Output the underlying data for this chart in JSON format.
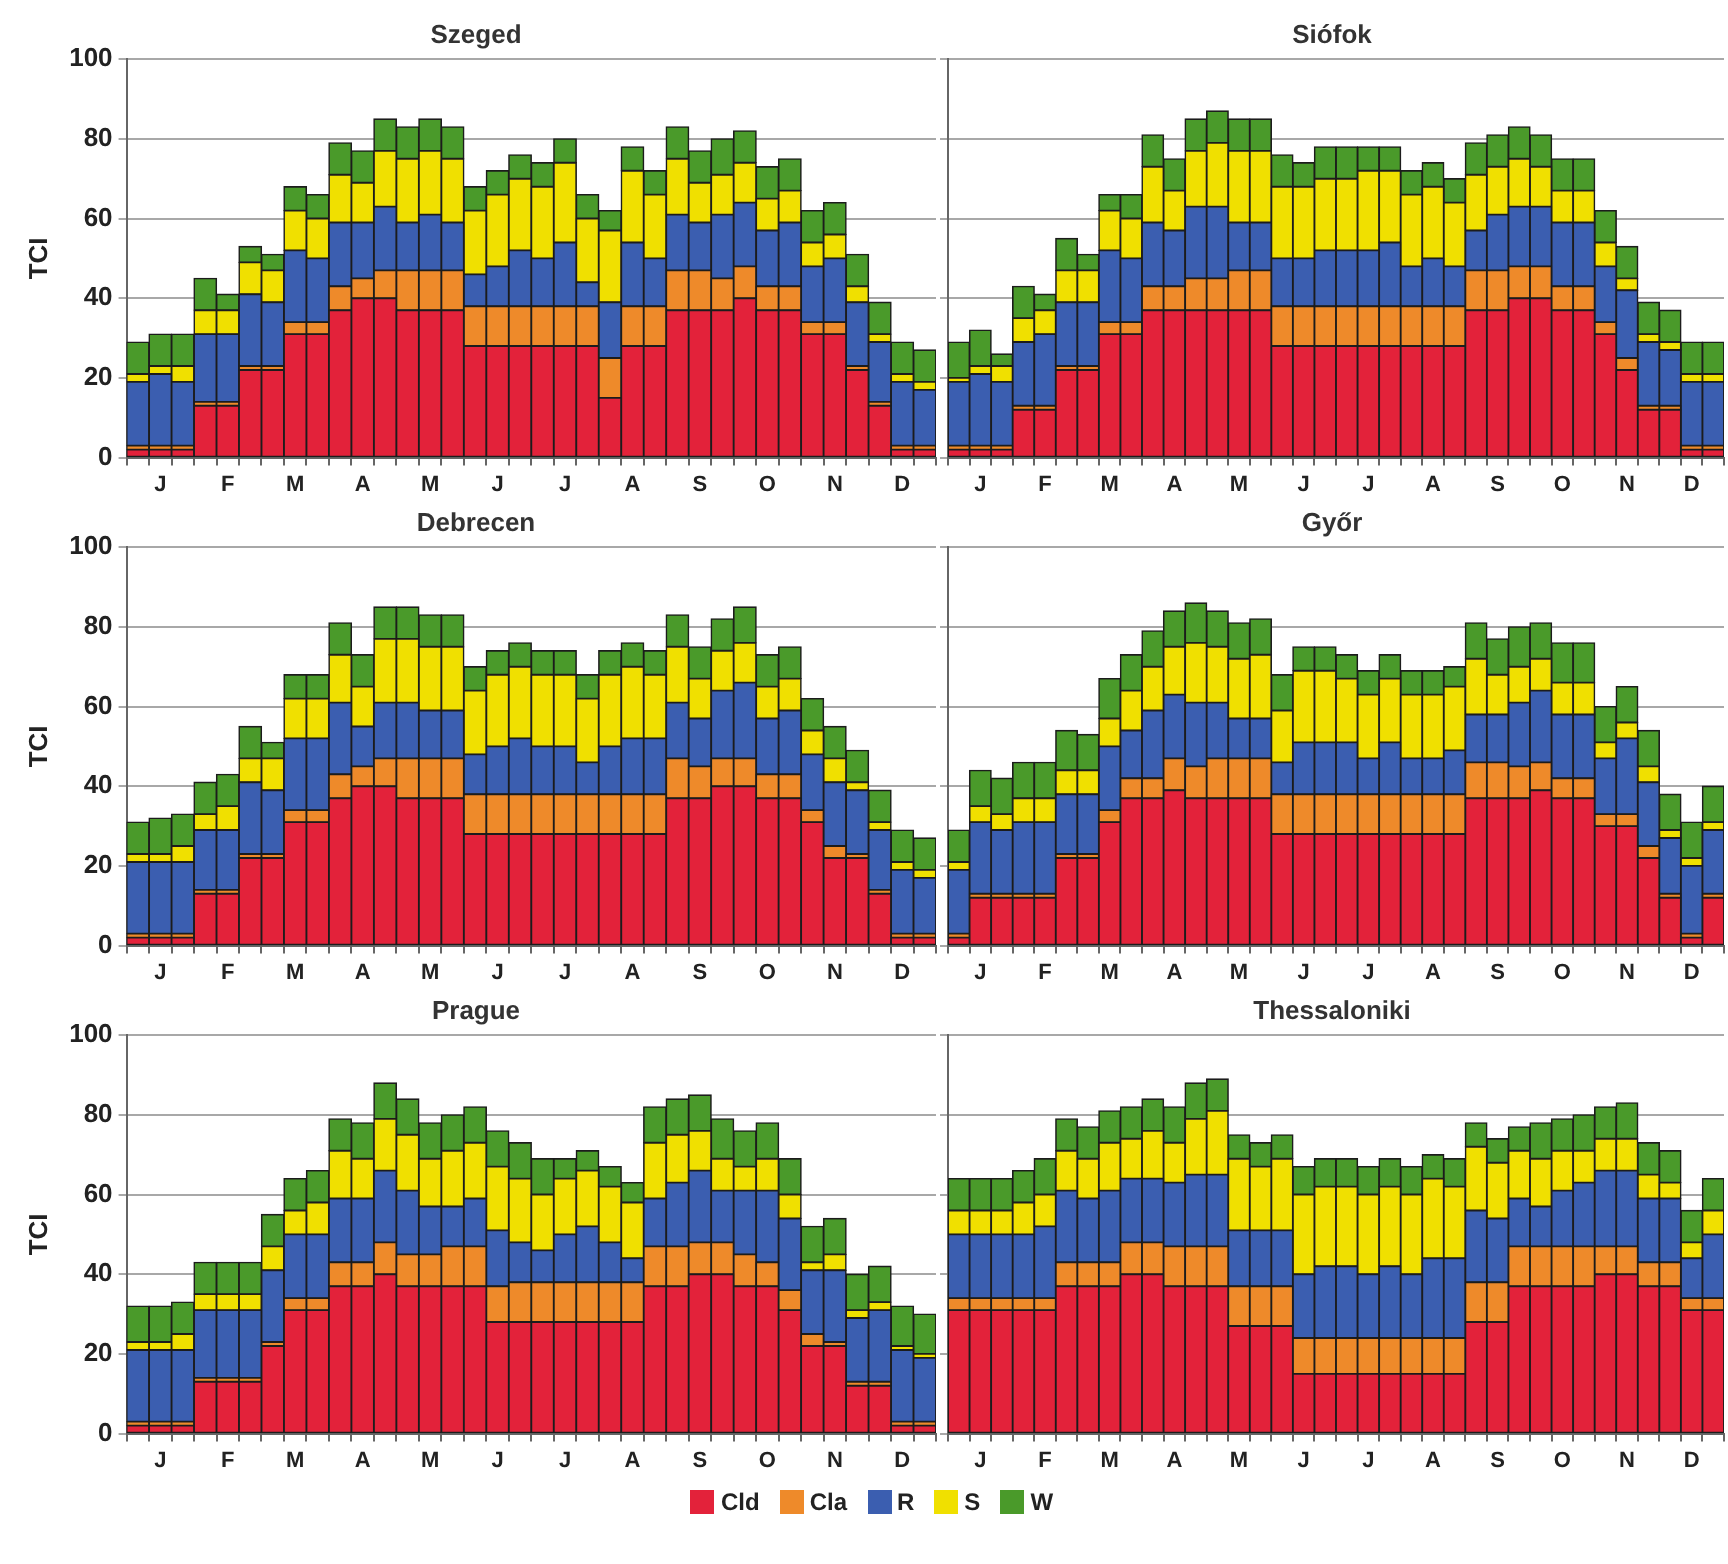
{
  "chart_data": [
    {
      "type": "bar",
      "title": "Szeged",
      "ylabel": "TCI",
      "stacked": true,
      "grid": "y",
      "legend": "bottom",
      "ylim": [
        0,
        100
      ],
      "yticks": [
        0,
        20,
        40,
        60,
        80,
        100
      ],
      "categories": [
        null,
        "J",
        null,
        null,
        "F",
        null,
        null,
        "M",
        null,
        null,
        "A",
        null,
        null,
        "M",
        null,
        null,
        "J",
        null,
        null,
        "J",
        null,
        null,
        "A",
        null,
        null,
        "S",
        null,
        null,
        "O",
        null,
        null,
        "N",
        null,
        null,
        "D",
        null
      ],
      "series": [
        {
          "name": "Cld",
          "color": "#e3223a",
          "values": [
            2,
            2,
            2,
            13,
            13,
            22,
            22,
            31,
            31,
            37,
            40,
            40,
            37,
            37,
            37,
            28,
            28,
            28,
            28,
            28,
            28,
            15,
            28,
            28,
            37,
            37,
            37,
            40,
            37,
            37,
            31,
            31,
            22,
            13,
            2,
            2
          ]
        },
        {
          "name": "Cla",
          "color": "#ee8a2a",
          "values": [
            1,
            1,
            1,
            1,
            1,
            1,
            1,
            3,
            3,
            6,
            5,
            7,
            10,
            10,
            10,
            10,
            10,
            10,
            10,
            10,
            10,
            10,
            10,
            10,
            10,
            10,
            8,
            8,
            6,
            6,
            3,
            3,
            1,
            1,
            1,
            1
          ]
        },
        {
          "name": "R",
          "color": "#3b5eb0",
          "values": [
            16,
            18,
            16,
            17,
            17,
            18,
            16,
            18,
            16,
            16,
            14,
            16,
            12,
            14,
            12,
            8,
            10,
            14,
            12,
            16,
            6,
            14,
            16,
            12,
            14,
            12,
            16,
            16,
            14,
            16,
            14,
            16,
            16,
            15,
            16,
            14
          ]
        },
        {
          "name": "S",
          "color": "#f0e000",
          "values": [
            2,
            2,
            4,
            6,
            6,
            8,
            8,
            10,
            10,
            12,
            10,
            14,
            16,
            16,
            16,
            16,
            18,
            18,
            18,
            20,
            16,
            18,
            18,
            16,
            14,
            10,
            10,
            10,
            8,
            8,
            6,
            6,
            4,
            2,
            2,
            2
          ]
        },
        {
          "name": "W",
          "color": "#4a9a2a",
          "values": [
            8,
            8,
            8,
            8,
            4,
            4,
            4,
            6,
            6,
            8,
            8,
            8,
            8,
            8,
            8,
            6,
            6,
            6,
            6,
            6,
            6,
            5,
            6,
            6,
            8,
            8,
            9,
            8,
            8,
            8,
            8,
            8,
            8,
            8,
            8,
            8
          ]
        }
      ]
    },
    {
      "type": "bar",
      "title": "Siófok",
      "stacked": true,
      "grid": "y",
      "legend": "bottom",
      "tick_labels": "x",
      "ylim": [
        0,
        100
      ],
      "yticks": [
        0,
        20,
        40,
        60,
        80,
        100
      ],
      "categories": [
        null,
        "J",
        null,
        null,
        "F",
        null,
        null,
        "M",
        null,
        null,
        "A",
        null,
        null,
        "M",
        null,
        null,
        "J",
        null,
        null,
        "J",
        null,
        null,
        "A",
        null,
        null,
        "S",
        null,
        null,
        "O",
        null,
        null,
        "N",
        null,
        null,
        "D",
        null
      ],
      "series": [
        {
          "name": "Cld",
          "color": "#e3223a",
          "values": [
            2,
            2,
            2,
            12,
            12,
            22,
            22,
            31,
            31,
            37,
            37,
            37,
            37,
            37,
            37,
            28,
            28,
            28,
            28,
            28,
            28,
            28,
            28,
            28,
            37,
            37,
            40,
            40,
            37,
            37,
            31,
            22,
            12,
            12,
            2,
            2
          ]
        },
        {
          "name": "Cla",
          "color": "#ee8a2a",
          "values": [
            1,
            1,
            1,
            1,
            1,
            1,
            1,
            3,
            3,
            6,
            6,
            8,
            8,
            10,
            10,
            10,
            10,
            10,
            10,
            10,
            10,
            10,
            10,
            10,
            10,
            10,
            8,
            8,
            6,
            6,
            3,
            3,
            1,
            1,
            1,
            1
          ]
        },
        {
          "name": "R",
          "color": "#3b5eb0",
          "values": [
            16,
            18,
            16,
            16,
            18,
            16,
            16,
            18,
            16,
            16,
            14,
            18,
            18,
            12,
            12,
            12,
            12,
            14,
            14,
            14,
            16,
            10,
            12,
            10,
            10,
            14,
            15,
            15,
            16,
            16,
            14,
            17,
            16,
            14,
            16,
            16
          ]
        },
        {
          "name": "S",
          "color": "#f0e000",
          "values": [
            1,
            2,
            4,
            6,
            6,
            8,
            8,
            10,
            10,
            14,
            10,
            14,
            16,
            18,
            18,
            18,
            18,
            18,
            18,
            20,
            18,
            18,
            18,
            16,
            14,
            12,
            12,
            10,
            8,
            8,
            6,
            3,
            2,
            2,
            2,
            2
          ]
        },
        {
          "name": "W",
          "color": "#4a9a2a",
          "values": [
            9,
            9,
            3,
            8,
            4,
            8,
            4,
            4,
            6,
            8,
            8,
            8,
            8,
            8,
            8,
            8,
            6,
            8,
            8,
            6,
            6,
            6,
            6,
            6,
            8,
            8,
            8,
            8,
            8,
            8,
            8,
            8,
            8,
            8,
            8,
            8
          ]
        }
      ]
    },
    {
      "type": "bar",
      "title": "Debrecen",
      "ylabel": "TCI",
      "stacked": true,
      "grid": "y",
      "legend": "bottom",
      "ylim": [
        0,
        100
      ],
      "yticks": [
        0,
        20,
        40,
        60,
        80,
        100
      ],
      "categories": [
        null,
        "J",
        null,
        null,
        "F",
        null,
        null,
        "M",
        null,
        null,
        "A",
        null,
        null,
        "M",
        null,
        null,
        "J",
        null,
        null,
        "J",
        null,
        null,
        "A",
        null,
        null,
        "S",
        null,
        null,
        "O",
        null,
        null,
        "N",
        null,
        null,
        "D",
        null
      ],
      "series": [
        {
          "name": "Cld",
          "color": "#e3223a",
          "values": [
            2,
            2,
            2,
            13,
            13,
            22,
            22,
            31,
            31,
            37,
            40,
            40,
            37,
            37,
            37,
            28,
            28,
            28,
            28,
            28,
            28,
            28,
            28,
            28,
            37,
            37,
            40,
            40,
            37,
            37,
            31,
            22,
            22,
            13,
            2,
            2
          ]
        },
        {
          "name": "Cla",
          "color": "#ee8a2a",
          "values": [
            1,
            1,
            1,
            1,
            1,
            1,
            1,
            3,
            3,
            6,
            5,
            7,
            10,
            10,
            10,
            10,
            10,
            10,
            10,
            10,
            10,
            10,
            10,
            10,
            10,
            8,
            7,
            7,
            6,
            6,
            3,
            3,
            1,
            1,
            1,
            1
          ]
        },
        {
          "name": "R",
          "color": "#3b5eb0",
          "values": [
            18,
            18,
            18,
            15,
            15,
            18,
            16,
            18,
            18,
            18,
            10,
            14,
            14,
            12,
            12,
            10,
            12,
            14,
            12,
            12,
            8,
            12,
            14,
            14,
            14,
            12,
            17,
            19,
            14,
            16,
            14,
            16,
            16,
            15,
            16,
            14
          ]
        },
        {
          "name": "S",
          "color": "#f0e000",
          "values": [
            2,
            2,
            4,
            4,
            6,
            6,
            8,
            10,
            10,
            12,
            10,
            16,
            16,
            16,
            16,
            16,
            18,
            18,
            18,
            18,
            16,
            18,
            18,
            16,
            14,
            10,
            10,
            10,
            8,
            8,
            6,
            6,
            2,
            2,
            2,
            2
          ]
        },
        {
          "name": "W",
          "color": "#4a9a2a",
          "values": [
            8,
            9,
            8,
            8,
            8,
            8,
            4,
            6,
            6,
            8,
            8,
            8,
            8,
            8,
            8,
            6,
            6,
            6,
            6,
            6,
            6,
            6,
            6,
            6,
            8,
            8,
            8,
            9,
            8,
            8,
            8,
            8,
            8,
            8,
            8,
            8
          ]
        }
      ]
    },
    {
      "type": "bar",
      "title": "Győr",
      "stacked": true,
      "grid": "y",
      "legend": "bottom",
      "tick_labels": "x",
      "ylim": [
        0,
        100
      ],
      "yticks": [
        0,
        20,
        40,
        60,
        80,
        100
      ],
      "categories": [
        null,
        "J",
        null,
        null,
        "F",
        null,
        null,
        "M",
        null,
        null,
        "A",
        null,
        null,
        "M",
        null,
        null,
        "J",
        null,
        null,
        "J",
        null,
        null,
        "A",
        null,
        null,
        "S",
        null,
        null,
        "O",
        null,
        null,
        "N",
        null,
        null,
        "D",
        null
      ],
      "series": [
        {
          "name": "Cld",
          "color": "#e3223a",
          "values": [
            2,
            12,
            12,
            12,
            12,
            22,
            22,
            31,
            37,
            37,
            39,
            37,
            37,
            37,
            37,
            28,
            28,
            28,
            28,
            28,
            28,
            28,
            28,
            28,
            37,
            37,
            37,
            39,
            37,
            37,
            30,
            30,
            22,
            12,
            2,
            12
          ]
        },
        {
          "name": "Cla",
          "color": "#ee8a2a",
          "values": [
            1,
            1,
            1,
            1,
            1,
            1,
            1,
            3,
            5,
            5,
            8,
            8,
            10,
            10,
            10,
            10,
            10,
            10,
            10,
            10,
            10,
            10,
            10,
            10,
            9,
            9,
            8,
            7,
            5,
            5,
            3,
            3,
            3,
            1,
            1,
            1
          ]
        },
        {
          "name": "R",
          "color": "#3b5eb0",
          "values": [
            16,
            18,
            16,
            18,
            18,
            15,
            15,
            16,
            12,
            17,
            16,
            16,
            14,
            10,
            10,
            8,
            13,
            13,
            13,
            9,
            13,
            9,
            9,
            11,
            12,
            12,
            16,
            18,
            16,
            16,
            14,
            19,
            16,
            14,
            17,
            16
          ]
        },
        {
          "name": "S",
          "color": "#f0e000",
          "values": [
            2,
            4,
            4,
            6,
            6,
            6,
            6,
            7,
            10,
            11,
            12,
            15,
            14,
            15,
            16,
            13,
            18,
            18,
            16,
            16,
            16,
            16,
            16,
            16,
            14,
            10,
            9,
            8,
            8,
            8,
            4,
            4,
            4,
            2,
            2,
            2
          ]
        },
        {
          "name": "W",
          "color": "#4a9a2a",
          "values": [
            8,
            9,
            9,
            9,
            9,
            10,
            9,
            10,
            9,
            9,
            9,
            10,
            9,
            9,
            9,
            9,
            6,
            6,
            6,
            6,
            6,
            6,
            6,
            5,
            9,
            9,
            10,
            9,
            10,
            10,
            9,
            9,
            9,
            9,
            9,
            9
          ]
        }
      ]
    },
    {
      "type": "bar",
      "title": "Prague",
      "ylabel": "TCI",
      "stacked": true,
      "grid": "y",
      "legend": "bottom",
      "ylim": [
        0,
        100
      ],
      "yticks": [
        0,
        20,
        40,
        60,
        80,
        100
      ],
      "categories": [
        null,
        "J",
        null,
        null,
        "F",
        null,
        null,
        "M",
        null,
        null,
        "A",
        null,
        null,
        "M",
        null,
        null,
        "J",
        null,
        null,
        "J",
        null,
        null,
        "A",
        null,
        null,
        "S",
        null,
        null,
        "O",
        null,
        null,
        "N",
        null,
        null,
        "D",
        null
      ],
      "series": [
        {
          "name": "Cld",
          "color": "#e3223a",
          "values": [
            2,
            2,
            2,
            13,
            13,
            13,
            22,
            31,
            31,
            37,
            37,
            40,
            37,
            37,
            37,
            37,
            28,
            28,
            28,
            28,
            28,
            28,
            28,
            37,
            37,
            40,
            40,
            37,
            37,
            31,
            22,
            22,
            12,
            12,
            2,
            2
          ]
        },
        {
          "name": "Cla",
          "color": "#ee8a2a",
          "values": [
            1,
            1,
            1,
            1,
            1,
            1,
            1,
            3,
            3,
            6,
            6,
            8,
            8,
            8,
            10,
            10,
            9,
            10,
            10,
            10,
            10,
            10,
            10,
            10,
            10,
            8,
            8,
            8,
            6,
            5,
            3,
            1,
            1,
            1,
            1,
            1
          ]
        },
        {
          "name": "R",
          "color": "#3b5eb0",
          "values": [
            18,
            18,
            18,
            17,
            17,
            17,
            18,
            16,
            16,
            16,
            16,
            18,
            16,
            12,
            10,
            12,
            14,
            10,
            8,
            12,
            14,
            10,
            6,
            12,
            16,
            18,
            13,
            16,
            18,
            18,
            16,
            18,
            16,
            18,
            18,
            16
          ]
        },
        {
          "name": "S",
          "color": "#f0e000",
          "values": [
            2,
            2,
            4,
            4,
            4,
            4,
            6,
            6,
            8,
            12,
            10,
            13,
            14,
            12,
            14,
            14,
            16,
            16,
            14,
            14,
            14,
            14,
            14,
            14,
            12,
            10,
            8,
            6,
            8,
            6,
            2,
            4,
            2,
            2,
            1,
            1
          ]
        },
        {
          "name": "W",
          "color": "#4a9a2a",
          "values": [
            9,
            9,
            8,
            8,
            8,
            8,
            8,
            8,
            8,
            8,
            9,
            9,
            9,
            9,
            9,
            9,
            9,
            9,
            9,
            5,
            5,
            5,
            5,
            9,
            9,
            9,
            10,
            9,
            9,
            9,
            9,
            9,
            9,
            9,
            10,
            10
          ]
        }
      ]
    },
    {
      "type": "bar",
      "title": "Thessaloniki",
      "stacked": true,
      "grid": "y",
      "tick_labels": "x",
      "legend": "bottom",
      "ylim": [
        0,
        100
      ],
      "yticks": [
        0,
        20,
        40,
        60,
        80,
        100
      ],
      "categories": [
        null,
        "J",
        null,
        null,
        "F",
        null,
        null,
        "M",
        null,
        null,
        "A",
        null,
        null,
        "M",
        null,
        null,
        "J",
        null,
        null,
        "J",
        null,
        null,
        "A",
        null,
        null,
        "S",
        null,
        null,
        "O",
        null,
        null,
        "N",
        null,
        null,
        "D",
        null
      ],
      "series": [
        {
          "name": "Cld",
          "color": "#e3223a",
          "values": [
            31,
            31,
            31,
            31,
            31,
            37,
            37,
            37,
            40,
            40,
            37,
            37,
            37,
            27,
            27,
            27,
            15,
            15,
            15,
            15,
            15,
            15,
            15,
            15,
            28,
            28,
            37,
            37,
            37,
            37,
            40,
            40,
            37,
            37,
            31,
            31
          ]
        },
        {
          "name": "Cla",
          "color": "#ee8a2a",
          "values": [
            3,
            3,
            3,
            3,
            3,
            6,
            6,
            6,
            8,
            8,
            10,
            10,
            10,
            10,
            10,
            10,
            9,
            9,
            9,
            9,
            9,
            9,
            9,
            9,
            10,
            10,
            10,
            10,
            10,
            10,
            7,
            7,
            6,
            6,
            3,
            3
          ]
        },
        {
          "name": "R",
          "color": "#3b5eb0",
          "values": [
            16,
            16,
            16,
            16,
            18,
            18,
            16,
            18,
            16,
            16,
            16,
            18,
            18,
            14,
            14,
            14,
            16,
            18,
            18,
            16,
            18,
            16,
            20,
            20,
            18,
            16,
            12,
            10,
            14,
            16,
            19,
            19,
            16,
            16,
            10,
            16
          ]
        },
        {
          "name": "S",
          "color": "#f0e000",
          "values": [
            6,
            6,
            6,
            8,
            8,
            10,
            10,
            12,
            10,
            12,
            10,
            14,
            16,
            18,
            16,
            18,
            20,
            20,
            20,
            20,
            20,
            20,
            20,
            18,
            16,
            14,
            12,
            12,
            10,
            8,
            8,
            8,
            6,
            4,
            4,
            6
          ]
        },
        {
          "name": "W",
          "color": "#4a9a2a",
          "values": [
            8,
            8,
            8,
            8,
            9,
            8,
            8,
            8,
            8,
            8,
            9,
            9,
            8,
            6,
            6,
            6,
            7,
            7,
            7,
            7,
            7,
            7,
            6,
            7,
            6,
            6,
            6,
            9,
            8,
            9,
            8,
            9,
            8,
            8,
            8,
            8
          ]
        }
      ]
    }
  ]
}
